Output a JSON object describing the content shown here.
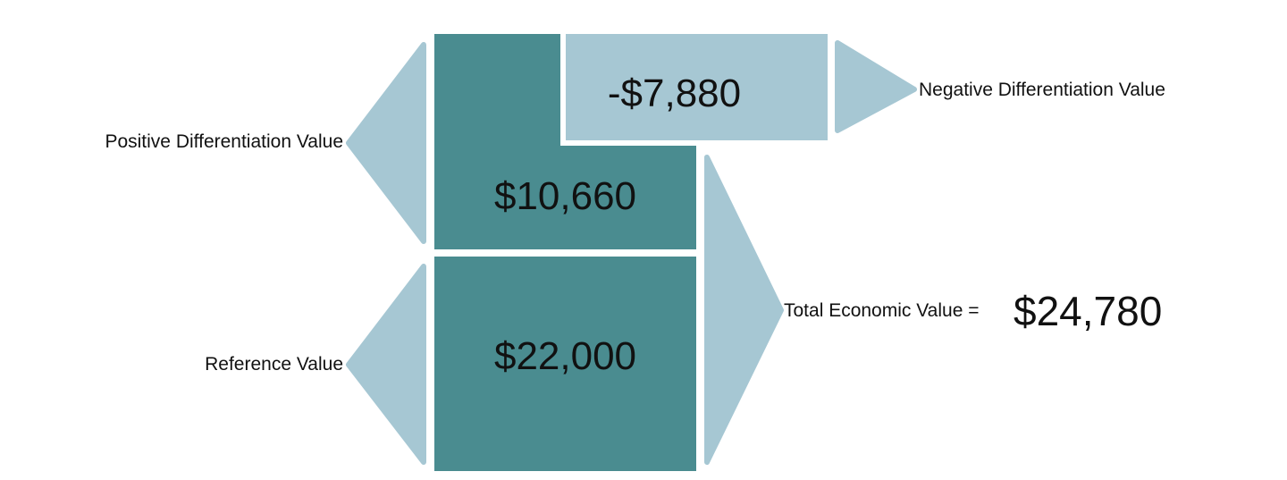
{
  "colors": {
    "dark_block": "#4a8c90",
    "light_block": "#a6c7d3",
    "arrow": "#a6c7d3",
    "text": "#111111",
    "background": "#ffffff"
  },
  "blocks": {
    "negative_value": "-$7,880",
    "positive_value": "$10,660",
    "reference_value": "$22,000"
  },
  "labels": {
    "positive": "Positive Differentiation Value",
    "negative": "Negative Differentiation Value",
    "reference": "Reference Value",
    "total_prefix": "Total Economic Value =",
    "total_value": "$24,780"
  },
  "icons": {
    "positive_arrow": "left-triangle-icon",
    "reference_arrow": "left-triangle-icon",
    "negative_arrow": "right-triangle-icon",
    "total_arrow": "right-triangle-icon"
  }
}
